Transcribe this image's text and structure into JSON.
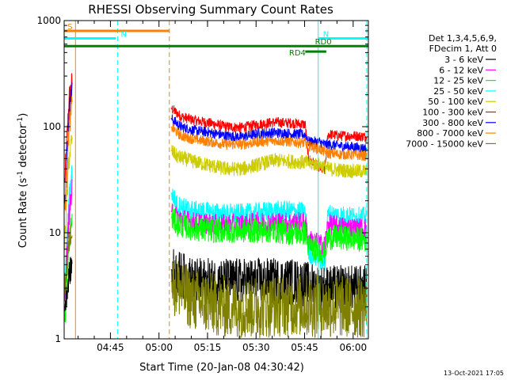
{
  "chart_data": {
    "type": "line",
    "title": "RHESSI Observing Summary Count Rates",
    "xlabel": "Start Time (20-Jan-08 04:30:42)",
    "ylabel_main": "Count Rate (s",
    "ylabel_sup1": "-1",
    "ylabel_mid": " detector",
    "ylabel_sup2": "-1",
    "ylabel_end": ")",
    "footer": "13-Oct-2021 17:05",
    "x_unit": "minutes since 04:30:42",
    "xlim": [
      0,
      94
    ],
    "ylim": [
      1,
      1000
    ],
    "yscale": "log",
    "x_ticks": [
      {
        "x": 14.3,
        "label": "04:45"
      },
      {
        "x": 29.3,
        "label": "05:00"
      },
      {
        "x": 44.3,
        "label": "05:15"
      },
      {
        "x": 59.3,
        "label": "05:30"
      },
      {
        "x": 74.3,
        "label": "05:45"
      },
      {
        "x": 89.3,
        "label": "06:00"
      }
    ],
    "y_ticks": [
      {
        "y": 1,
        "label": "1"
      },
      {
        "y": 10,
        "label": "10"
      },
      {
        "y": 100,
        "label": "100"
      },
      {
        "y": 1000,
        "label": "1000"
      }
    ],
    "legend": {
      "header": [
        "Det 1,3,4,5,6,9,",
        "FDecim 1, Att 0"
      ],
      "entries": [
        {
          "name": "3 - 6 keV",
          "color": "#000000"
        },
        {
          "name": "6 - 12 keV",
          "color": "#ff00ff"
        },
        {
          "name": "12 - 25 keV",
          "color": "#00ff00"
        },
        {
          "name": "25 - 50 keV",
          "color": "#00ffff"
        },
        {
          "name": "50 - 100 keV",
          "color": "#cccc00"
        },
        {
          "name": "100 - 300 keV",
          "color": "#ff0000"
        },
        {
          "name": "300 - 800 keV",
          "color": "#0000ff"
        },
        {
          "name": "800 - 7000 keV",
          "color": "#ff8000"
        },
        {
          "name": "7000 - 15000 keV",
          "color": "#808000"
        }
      ]
    },
    "flags": [
      {
        "label": "S",
        "color": "#ff8000",
        "x0": 0,
        "x1": 32.5,
        "y": 800,
        "label_x": 1
      },
      {
        "label": "N",
        "color": "#00ffff",
        "x0": 0,
        "x1": 16.0,
        "y": 680,
        "label_x": 17.5
      },
      {
        "label": "N",
        "color": "#00ffff",
        "x0": 78.5,
        "x1": 94,
        "y": 680,
        "label_x": 80
      },
      {
        "label": "RD0",
        "color": "#008000",
        "x0": 0,
        "x1": 94,
        "y": 575,
        "label_x": 77.5
      },
      {
        "label": "RD4",
        "color": "#008000",
        "x0": 74.5,
        "x1": 81.0,
        "y": 510,
        "label_x": 69.5
      }
    ],
    "vlines": [
      {
        "x": 3.5,
        "color": "#ff8000",
        "style": "solid"
      },
      {
        "x": 16.5,
        "color": "#00ffff",
        "style": "dashed"
      },
      {
        "x": 32.5,
        "color": "#ff8000",
        "style": "dashed"
      },
      {
        "x": 78.5,
        "color": "#00ffff",
        "style": "solid"
      },
      {
        "x": 93.5,
        "color": "#00ffff",
        "style": "dashed"
      }
    ],
    "series": [
      {
        "band": "100 - 300 keV",
        "color": "#ff0000",
        "x": [
          0.2,
          1.5,
          2.5,
          33.0,
          36,
          40,
          45,
          50,
          55,
          60,
          65,
          70,
          74.5,
          75.5,
          78.5,
          80.5,
          81.5,
          85,
          90,
          93.5
        ],
        "y": [
          30,
          180,
          270,
          150,
          125,
          115,
          108,
          100,
          98,
          105,
          110,
          108,
          105,
          50,
          42,
          38,
          85,
          82,
          82,
          80
        ],
        "noise": 0.05
      },
      {
        "band": "300 - 800 keV",
        "color": "#0000ff",
        "x": [
          0.2,
          1.5,
          2.5,
          33.0,
          36,
          40,
          45,
          50,
          55,
          60,
          65,
          70,
          74.5,
          75.5,
          78.5,
          80.5,
          81.5,
          85,
          90,
          93.5
        ],
        "y": [
          20,
          140,
          220,
          120,
          100,
          92,
          88,
          82,
          80,
          86,
          88,
          86,
          84,
          72,
          72,
          68,
          68,
          66,
          64,
          62
        ],
        "noise": 0.05
      },
      {
        "band": "800 - 7000 keV",
        "color": "#ff8000",
        "x": [
          0.2,
          1.5,
          2.5,
          33.0,
          36,
          40,
          45,
          50,
          55,
          60,
          65,
          70,
          74.5,
          75.5,
          78.5,
          80.5,
          81.5,
          85,
          90,
          93.5
        ],
        "y": [
          15,
          100,
          160,
          100,
          82,
          76,
          72,
          68,
          68,
          72,
          74,
          72,
          70,
          66,
          62,
          58,
          56,
          55,
          54,
          53
        ],
        "noise": 0.05
      },
      {
        "band": "50 - 100 keV",
        "color": "#cccc00",
        "x": [
          0.2,
          1.5,
          2.5,
          33.0,
          35,
          40,
          45,
          50,
          55,
          60,
          65,
          70,
          74.5,
          75.5,
          78.5,
          80.5,
          81.5,
          85,
          90,
          93.5
        ],
        "y": [
          8,
          50,
          80,
          60,
          52,
          47,
          43,
          40,
          40,
          44,
          48,
          47,
          46,
          45,
          44,
          42,
          40,
          39,
          38,
          38
        ],
        "noise": 0.07
      },
      {
        "band": "25 - 50 keV",
        "color": "#00ffff",
        "x": [
          0.2,
          1.5,
          2.5,
          33.0,
          35,
          40,
          45,
          50,
          55,
          60,
          65,
          70,
          74.5,
          75.5,
          78.5,
          80.5,
          81.5,
          85,
          90,
          93.5
        ],
        "y": [
          3,
          20,
          40,
          24,
          18,
          16,
          15.5,
          15,
          15,
          15.5,
          16,
          16,
          15.5,
          6.5,
          5.8,
          5.2,
          15,
          14.5,
          14,
          14
        ],
        "noise": 0.1
      },
      {
        "band": "6 - 12 keV",
        "color": "#ff00ff",
        "x": [
          0.2,
          1.5,
          2.5,
          33.0,
          35,
          40,
          45,
          50,
          55,
          60,
          65,
          70,
          74.5,
          75.5,
          78.5,
          80.5,
          81.5,
          85,
          90,
          93.5
        ],
        "y": [
          2.5,
          15,
          25,
          16,
          14,
          12.5,
          12,
          12,
          12,
          12.5,
          12.5,
          12.5,
          12.5,
          8.5,
          8.0,
          7.5,
          12,
          11.5,
          11,
          11
        ],
        "noise": 0.1
      },
      {
        "band": "12 - 25 keV",
        "color": "#00ff00",
        "x": [
          0.2,
          1.5,
          2.5,
          33.0,
          35,
          40,
          45,
          50,
          55,
          60,
          65,
          70,
          74.5,
          75.5,
          78.5,
          80.5,
          81.5,
          85,
          90,
          93.5
        ],
        "y": [
          1.5,
          8,
          14,
          14,
          12,
          11,
          10.5,
          10.5,
          10.5,
          10.5,
          10.5,
          10,
          10,
          7.5,
          7.0,
          6.5,
          9,
          9,
          8.8,
          8.5
        ],
        "noise": 0.12
      },
      {
        "band": "3 - 6 keV",
        "color": "#000000",
        "x": [
          0.2,
          1.5,
          2.5,
          33.0,
          40,
          50,
          60,
          70,
          80,
          93.5
        ],
        "y": [
          2,
          4,
          5,
          4.5,
          3.5,
          3.5,
          3.5,
          3.5,
          3.0,
          3.0
        ],
        "noise": 0.22
      },
      {
        "band": "7000 - 15000 keV",
        "color": "#808000",
        "x": [
          0.2,
          1.5,
          2.5,
          33.0,
          40,
          50,
          60,
          70,
          80,
          93.5
        ],
        "y": [
          3,
          8,
          12,
          3.5,
          2.3,
          2.0,
          2.0,
          2.1,
          2.0,
          2.0
        ],
        "noise": 0.3
      }
    ]
  }
}
